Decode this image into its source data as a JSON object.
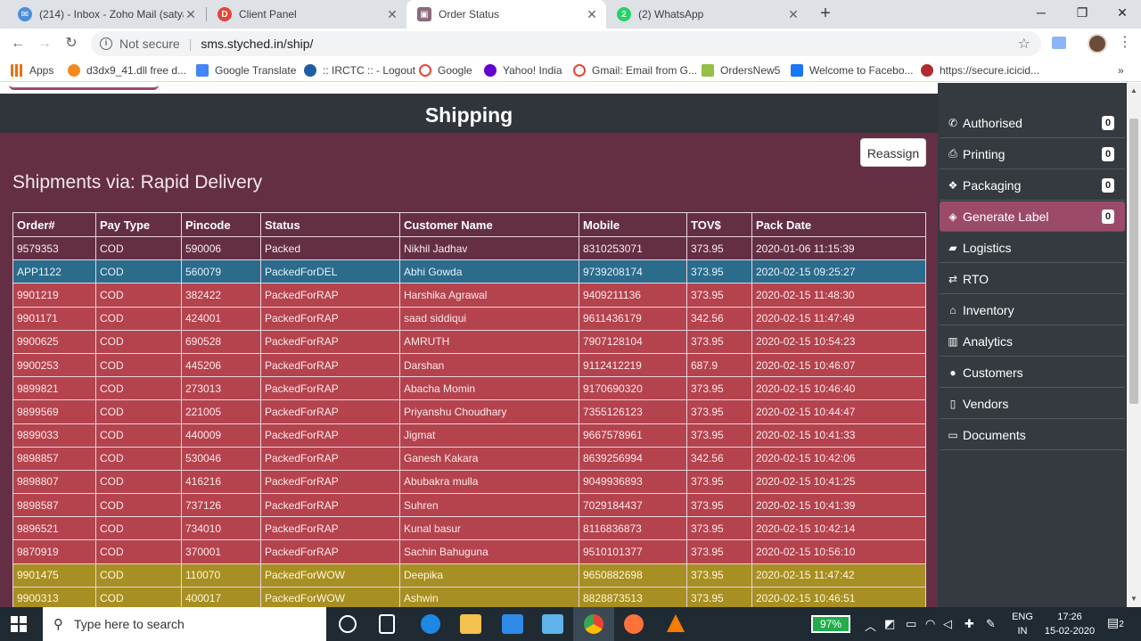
{
  "browser": {
    "tabs": [
      {
        "title": "(214) - Inbox - Zoho Mail (satyaj",
        "close": "✕",
        "color": "#4a8fd8"
      },
      {
        "title": "Client Panel",
        "close": "✕",
        "color": "#e2463a"
      },
      {
        "title": "Order Status",
        "close": "✕",
        "color": "#8c6a7a"
      },
      {
        "title": "(2) WhatsApp",
        "close": "✕",
        "color": "#25d366"
      }
    ],
    "new_tab": "+",
    "window": {
      "minimize": "─",
      "maximize": "❐",
      "close": "✕"
    },
    "security_label": "Not secure",
    "url": "sms.styched.in/ship/",
    "bookmarks": [
      {
        "label": "Apps",
        "color": "#e8710a"
      },
      {
        "label": "d3dx9_41.dll free d...",
        "color": "#f28b1e"
      },
      {
        "label": "Google Translate",
        "color": "#4285f4"
      },
      {
        "label": ":: IRCTC :: - Logout",
        "color": "#1f5ca8"
      },
      {
        "label": "Google",
        "color": "#ea4335"
      },
      {
        "label": "Yahoo! India",
        "color": "#6001d2"
      },
      {
        "label": "Gmail: Email from G...",
        "color": "#ea4335"
      },
      {
        "label": "OrdersNew5",
        "color": "#95bf47"
      },
      {
        "label": "Welcome to Facebo...",
        "color": "#1877f2"
      },
      {
        "label": "https://secure.icicid...",
        "color": "#b02a30"
      }
    ],
    "bookmarks_more": "»"
  },
  "page": {
    "title": "Shipping",
    "reassign_label": "Reassign",
    "section_title": "Shipments via: Rapid Delivery"
  },
  "table": {
    "headers": [
      "Order#",
      "Pay Type",
      "Pincode",
      "Status",
      "Customer Name",
      "Mobile",
      "TOV$",
      "Pack Date"
    ],
    "rows": [
      {
        "cls": "r-packed",
        "cells": [
          "9579353",
          "COD",
          "590006",
          "Packed",
          "Nikhil Jadhav",
          "8310253071",
          "373.95",
          "2020-01-06 11:15:39"
        ]
      },
      {
        "cls": "r-del",
        "cells": [
          "APP1122",
          "COD",
          "560079",
          "PackedForDEL",
          "Abhi Gowda",
          "9739208174",
          "373.95",
          "2020-02-15 09:25:27"
        ]
      },
      {
        "cls": "r-rap",
        "cells": [
          "9901219",
          "COD",
          "382422",
          "PackedForRAP",
          "Harshika Agrawal",
          "9409211136",
          "373.95",
          "2020-02-15 11:48:30"
        ]
      },
      {
        "cls": "r-rap",
        "cells": [
          "9901171",
          "COD",
          "424001",
          "PackedForRAP",
          "saad siddiqui",
          "9611436179",
          "342.56",
          "2020-02-15 11:47:49"
        ]
      },
      {
        "cls": "r-rap",
        "cells": [
          "9900625",
          "COD",
          "690528",
          "PackedForRAP",
          "AMRUTH",
          "7907128104",
          "373.95",
          "2020-02-15 10:54:23"
        ]
      },
      {
        "cls": "r-rap",
        "cells": [
          "9900253",
          "COD",
          "445206",
          "PackedForRAP",
          "Darshan",
          "9112412219",
          "687.9",
          "2020-02-15 10:46:07"
        ]
      },
      {
        "cls": "r-rap",
        "cells": [
          "9899821",
          "COD",
          "273013",
          "PackedForRAP",
          "Abacha Momin",
          "9170690320",
          "373.95",
          "2020-02-15 10:46:40"
        ]
      },
      {
        "cls": "r-rap",
        "cells": [
          "9899569",
          "COD",
          "221005",
          "PackedForRAP",
          "Priyanshu Choudhary",
          "7355126123",
          "373.95",
          "2020-02-15 10:44:47"
        ]
      },
      {
        "cls": "r-rap",
        "cells": [
          "9899033",
          "COD",
          "440009",
          "PackedForRAP",
          "Jigmat",
          "9667578961",
          "373.95",
          "2020-02-15 10:41:33"
        ]
      },
      {
        "cls": "r-rap",
        "cells": [
          "9898857",
          "COD",
          "530046",
          "PackedForRAP",
          "Ganesh Kakara",
          "8639256994",
          "342.56",
          "2020-02-15 10:42:06"
        ]
      },
      {
        "cls": "r-rap",
        "cells": [
          "9898807",
          "COD",
          "416216",
          "PackedForRAP",
          "Abubakra mulla",
          "9049936893",
          "373.95",
          "2020-02-15 10:41:25"
        ]
      },
      {
        "cls": "r-rap",
        "cells": [
          "9898587",
          "COD",
          "737126",
          "PackedForRAP",
          "Suhren",
          "7029184437",
          "373.95",
          "2020-02-15 10:41:39"
        ]
      },
      {
        "cls": "r-rap",
        "cells": [
          "9896521",
          "COD",
          "734010",
          "PackedForRAP",
          "Kunal basur",
          "8116836873",
          "373.95",
          "2020-02-15 10:42:14"
        ]
      },
      {
        "cls": "r-rap",
        "cells": [
          "9870919",
          "COD",
          "370001",
          "PackedForRAP",
          "Sachin Bahuguna",
          "9510101377",
          "373.95",
          "2020-02-15 10:56:10"
        ]
      },
      {
        "cls": "r-wow",
        "cells": [
          "9901475",
          "COD",
          "110070",
          "PackedForWOW",
          "Deepika",
          "9650882698",
          "373.95",
          "2020-02-15 11:47:42"
        ]
      },
      {
        "cls": "r-wow",
        "cells": [
          "9900313",
          "COD",
          "400017",
          "PackedForWOW",
          "Ashwin",
          "8828873513",
          "373.95",
          "2020-02-15 10:46:51"
        ]
      }
    ]
  },
  "sidebar": {
    "items": [
      {
        "label": "Authorised",
        "icon": "phone-icon",
        "glyph": "✆",
        "count": "0"
      },
      {
        "label": "Printing",
        "icon": "printer-icon",
        "glyph": "⎙",
        "count": "0"
      },
      {
        "label": "Packaging",
        "icon": "cubes-icon",
        "glyph": "❖",
        "count": "0"
      },
      {
        "label": "Generate Label",
        "icon": "tags-icon",
        "glyph": "◈",
        "count": "0",
        "active": true
      },
      {
        "label": "Logistics",
        "icon": "truck-icon",
        "glyph": "▰"
      },
      {
        "label": "RTO",
        "icon": "exchange-icon",
        "glyph": "⇄"
      },
      {
        "label": "Inventory",
        "icon": "home-icon",
        "glyph": "⌂"
      },
      {
        "label": "Analytics",
        "icon": "barcode-icon",
        "glyph": "▥"
      },
      {
        "label": "Customers",
        "icon": "user-icon",
        "glyph": "●"
      },
      {
        "label": "Vendors",
        "icon": "file-icon",
        "glyph": "▯"
      },
      {
        "label": "Documents",
        "icon": "credit-card-icon",
        "glyph": "▭"
      }
    ]
  },
  "taskbar": {
    "search_placeholder": "Type here to search",
    "battery": "97%",
    "lang_top": "ENG",
    "lang_bottom": "IN",
    "time": "17:26",
    "date": "15-02-2020",
    "notifications": "2"
  }
}
